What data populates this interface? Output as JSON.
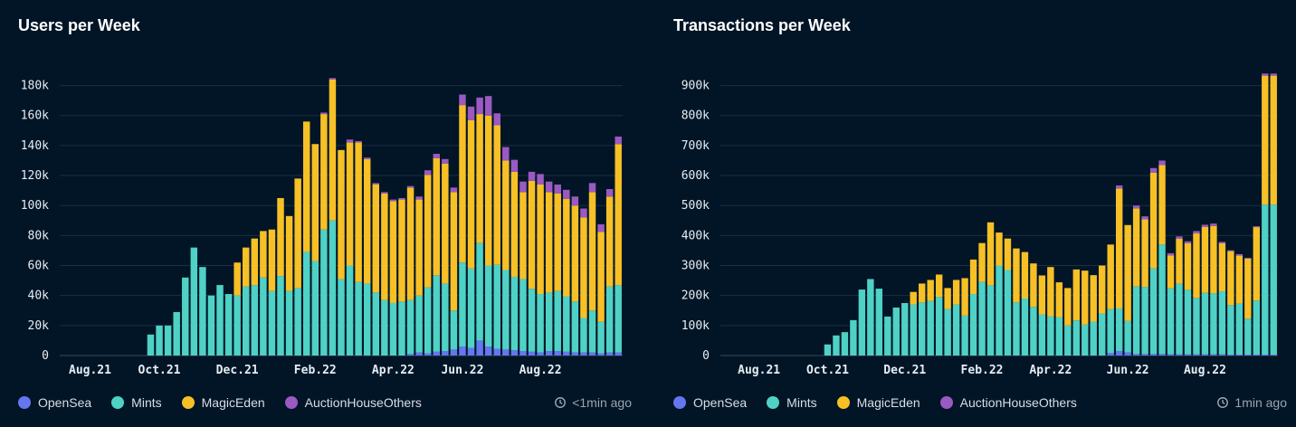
{
  "legend": [
    {
      "name": "OpenSea",
      "color": "#6476f0"
    },
    {
      "name": "Mints",
      "color": "#4fd1c5"
    },
    {
      "name": "MagicEden",
      "color": "#f6c026"
    },
    {
      "name": "AuctionHouseOthers",
      "color": "#9b59c2"
    }
  ],
  "chart_data": [
    {
      "type": "bar",
      "stacked": true,
      "title": "Users per Week",
      "updated": "<1min ago",
      "ylim": [
        0,
        190000
      ],
      "yticks": [
        0,
        20000,
        40000,
        60000,
        80000,
        100000,
        120000,
        140000,
        160000,
        180000
      ],
      "ytick_labels": [
        "0",
        "20k",
        "40k",
        "60k",
        "80k",
        "100k",
        "120k",
        "140k",
        "160k",
        "180k"
      ],
      "xtick_labels": [
        {
          "label": "Aug.21",
          "index": 3
        },
        {
          "label": "Oct.21",
          "index": 11
        },
        {
          "label": "Dec.21",
          "index": 20
        },
        {
          "label": "Feb.22",
          "index": 29
        },
        {
          "label": "Apr.22",
          "index": 38
        },
        {
          "label": "Jun.22",
          "index": 46
        },
        {
          "label": "Aug.22",
          "index": 55
        }
      ],
      "series": [
        {
          "name": "OpenSea",
          "values": [
            0,
            0,
            0,
            0,
            0,
            0,
            0,
            0,
            0,
            0,
            0,
            0,
            0,
            0,
            0,
            0,
            0,
            0,
            0,
            0,
            0,
            0,
            0,
            0,
            0,
            0,
            0,
            0,
            0,
            0,
            0,
            0,
            0,
            0,
            0,
            0,
            0,
            0,
            0,
            0,
            1000,
            2000,
            1500,
            2500,
            3000,
            4000,
            6000,
            5000,
            10000,
            6000,
            4500,
            4000,
            3500,
            3000,
            2500,
            2000,
            3000,
            3000,
            2500,
            2000,
            2000,
            2000,
            1500,
            2000,
            2000
          ]
        },
        {
          "name": "Mints",
          "values": [
            0,
            0,
            0,
            0,
            0,
            0,
            0,
            0,
            0,
            0,
            14000,
            20000,
            20000,
            29000,
            52000,
            72000,
            59000,
            40000,
            47000,
            41000,
            40000,
            46000,
            47000,
            52000,
            43000,
            53000,
            43000,
            45000,
            69000,
            63000,
            84000,
            90000,
            51000,
            60000,
            49000,
            48000,
            42000,
            37000,
            35000,
            36000,
            36000,
            38000,
            44000,
            51000,
            45000,
            26000,
            56000,
            53000,
            65000,
            54000,
            56000,
            53000,
            49000,
            48000,
            42000,
            39000,
            39000,
            40000,
            37000,
            34000,
            23000,
            28000,
            21000,
            44000,
            45000
          ]
        },
        {
          "name": "MagicEden",
          "values": [
            0,
            0,
            0,
            0,
            0,
            0,
            0,
            0,
            0,
            0,
            0,
            0,
            0,
            0,
            0,
            0,
            0,
            0,
            0,
            0,
            22000,
            26000,
            31000,
            31000,
            41000,
            52000,
            50000,
            73000,
            87000,
            78000,
            77000,
            94000,
            86000,
            82000,
            93000,
            83000,
            72000,
            71000,
            68000,
            68000,
            75000,
            64000,
            75000,
            78000,
            80000,
            79000,
            105000,
            99000,
            86000,
            100000,
            93000,
            73000,
            70000,
            58000,
            72000,
            73000,
            67000,
            65000,
            65000,
            64000,
            67000,
            79000,
            60000,
            60000,
            94000
          ]
        },
        {
          "name": "AuctionHouseOthers",
          "values": [
            0,
            0,
            0,
            0,
            0,
            0,
            0,
            0,
            0,
            0,
            0,
            0,
            0,
            0,
            0,
            0,
            0,
            0,
            0,
            0,
            0,
            0,
            0,
            0,
            0,
            0,
            0,
            0,
            0,
            0,
            1000,
            1000,
            0,
            2000,
            1000,
            1000,
            1000,
            1000,
            1000,
            1000,
            1000,
            2000,
            3000,
            3000,
            3000,
            3000,
            7000,
            9000,
            11000,
            13000,
            8000,
            9000,
            8000,
            7000,
            6000,
            7000,
            7000,
            6000,
            6000,
            6000,
            6000,
            6000,
            5000,
            5000,
            5000
          ]
        }
      ]
    },
    {
      "type": "bar",
      "stacked": true,
      "title": "Transactions per Week",
      "updated": "1min ago",
      "ylim": [
        0,
        950000
      ],
      "yticks": [
        0,
        100000,
        200000,
        300000,
        400000,
        500000,
        600000,
        700000,
        800000,
        900000
      ],
      "ytick_labels": [
        "0",
        "100k",
        "200k",
        "300k",
        "400k",
        "500k",
        "600k",
        "700k",
        "800k",
        "900k"
      ],
      "xtick_labels": [
        {
          "label": "Aug.21",
          "index": 4
        },
        {
          "label": "Oct.21",
          "index": 12
        },
        {
          "label": "Dec.21",
          "index": 21
        },
        {
          "label": "Feb.22",
          "index": 30
        },
        {
          "label": "Apr.22",
          "index": 38
        },
        {
          "label": "Jun.22",
          "index": 47
        },
        {
          "label": "Aug.22",
          "index": 56
        }
      ],
      "series": [
        {
          "name": "OpenSea",
          "values": [
            0,
            0,
            0,
            0,
            0,
            0,
            0,
            0,
            0,
            0,
            0,
            0,
            0,
            0,
            0,
            0,
            0,
            0,
            0,
            0,
            0,
            0,
            0,
            0,
            0,
            0,
            0,
            0,
            0,
            0,
            0,
            0,
            0,
            0,
            0,
            0,
            0,
            0,
            0,
            0,
            0,
            0,
            0,
            0,
            0,
            8000,
            15000,
            10000,
            5000,
            5000,
            5000,
            5000,
            4000,
            4000,
            4000,
            4000,
            4000,
            4000,
            4000,
            3000,
            3000,
            3000,
            3000,
            3000,
            3000
          ]
        },
        {
          "name": "Mints",
          "values": [
            0,
            0,
            0,
            0,
            0,
            0,
            0,
            0,
            0,
            0,
            0,
            0,
            37000,
            67000,
            78000,
            118000,
            220000,
            255000,
            223000,
            130000,
            160000,
            175000,
            170000,
            177000,
            182000,
            195000,
            155000,
            170000,
            133000,
            205000,
            245000,
            234000,
            300000,
            285000,
            177000,
            190000,
            162000,
            137000,
            130000,
            128000,
            100000,
            117000,
            103000,
            113000,
            140000,
            147000,
            142000,
            105000,
            225000,
            224000,
            285000,
            365000,
            220000,
            235000,
            215000,
            188000,
            205000,
            203000,
            210000,
            165000,
            170000,
            120000,
            180000,
            500000,
            500000
          ]
        },
        {
          "name": "MagicEden",
          "values": [
            0,
            0,
            0,
            0,
            0,
            0,
            0,
            0,
            0,
            0,
            0,
            0,
            0,
            0,
            0,
            0,
            0,
            0,
            0,
            0,
            0,
            0,
            42000,
            63000,
            70000,
            75000,
            70000,
            82000,
            125000,
            115000,
            130000,
            210000,
            110000,
            105000,
            180000,
            155000,
            145000,
            130000,
            165000,
            116000,
            125000,
            170000,
            180000,
            155000,
            160000,
            215000,
            400000,
            320000,
            260000,
            225000,
            320000,
            265000,
            110000,
            150000,
            155000,
            215000,
            220000,
            225000,
            160000,
            180000,
            160000,
            200000,
            245000,
            430000,
            430000
          ]
        },
        {
          "name": "AuctionHouseOthers",
          "values": [
            0,
            0,
            0,
            0,
            0,
            0,
            0,
            0,
            0,
            0,
            0,
            0,
            0,
            0,
            0,
            0,
            0,
            0,
            0,
            0,
            0,
            0,
            0,
            0,
            0,
            0,
            0,
            0,
            0,
            0,
            0,
            0,
            0,
            0,
            0,
            0,
            0,
            0,
            0,
            0,
            0,
            0,
            0,
            0,
            0,
            0,
            10000,
            0,
            10000,
            10000,
            15000,
            15000,
            7000,
            8000,
            7000,
            8000,
            7000,
            8000,
            5000,
            3000,
            5000,
            3000,
            3000,
            7000,
            7000
          ]
        }
      ]
    }
  ]
}
